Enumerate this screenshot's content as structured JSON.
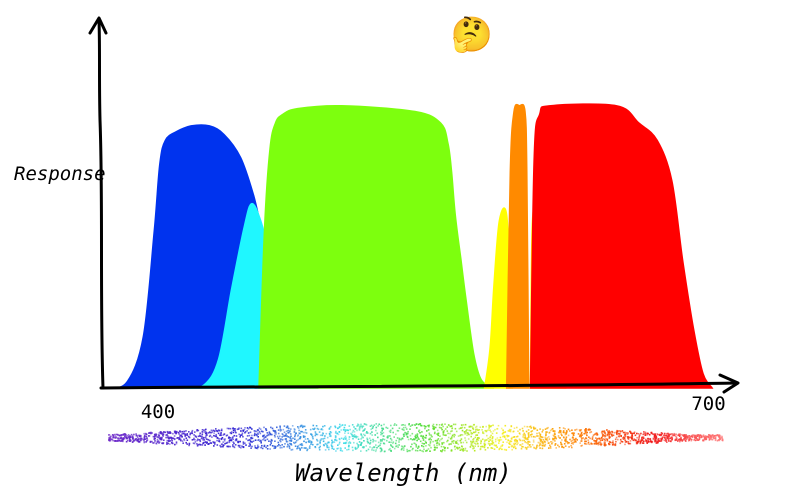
{
  "chart_data": {
    "type": "area",
    "title": "",
    "xlabel": "Wavelength (nm)",
    "ylabel": "Response",
    "xlim": [
      370,
      715
    ],
    "ylim": [
      0,
      1
    ],
    "x_ticks": [
      {
        "value": 400,
        "label": "400"
      },
      {
        "value": 700,
        "label": "700"
      }
    ],
    "annotation": "🤔",
    "series": [
      {
        "color": "#0033ee",
        "points": [
          [
            372,
            0
          ],
          [
            383,
            0.02
          ],
          [
            392,
            0.18
          ],
          [
            398,
            0.55
          ],
          [
            401,
            0.78
          ],
          [
            404,
            0.86
          ],
          [
            410,
            0.89
          ],
          [
            418,
            0.91
          ],
          [
            428,
            0.91
          ],
          [
            436,
            0.88
          ],
          [
            445,
            0.8
          ],
          [
            452,
            0.67
          ],
          [
            456,
            0.56
          ],
          [
            460,
            0.44
          ],
          [
            463,
            0.38
          ],
          [
            466,
            0.32
          ],
          [
            470,
            0.22
          ],
          [
            476,
            0.05
          ],
          [
            480,
            0.02
          ],
          [
            486,
            0
          ]
        ]
      },
      {
        "color": "#1ff7ff",
        "points": [
          [
            414,
            0
          ],
          [
            425,
            0.01
          ],
          [
            433,
            0.1
          ],
          [
            440,
            0.34
          ],
          [
            447,
            0.56
          ],
          [
            451,
            0.64
          ],
          [
            456,
            0.58
          ],
          [
            462,
            0.43
          ],
          [
            468,
            0.28
          ],
          [
            475,
            0.06
          ],
          [
            482,
            0
          ]
        ]
      },
      {
        "color": "#7dff0e",
        "points": [
          [
            455,
            0
          ],
          [
            458,
            0.55
          ],
          [
            461,
            0.83
          ],
          [
            464,
            0.92
          ],
          [
            468,
            0.95
          ],
          [
            476,
            0.97
          ],
          [
            500,
            0.98
          ],
          [
            540,
            0.96
          ],
          [
            554,
            0.92
          ],
          [
            558,
            0.85
          ],
          [
            560,
            0.75
          ],
          [
            562,
            0.6
          ],
          [
            565,
            0.45
          ],
          [
            568,
            0.3
          ],
          [
            572,
            0.12
          ],
          [
            576,
            0.03
          ],
          [
            582,
            0
          ]
        ]
      },
      {
        "color": "#ffff00",
        "points": [
          [
            578,
            0
          ],
          [
            581,
            0.14
          ],
          [
            583,
            0.35
          ],
          [
            586,
            0.58
          ],
          [
            590,
            0.6
          ],
          [
            592,
            0.3
          ],
          [
            593,
            0
          ]
        ]
      },
      {
        "color": "#ff8a00",
        "points": [
          [
            590,
            0
          ],
          [
            592,
            0.75
          ],
          [
            594,
            0.96
          ],
          [
            597,
            0.98
          ],
          [
            600,
            0.96
          ],
          [
            601,
            0.75
          ],
          [
            602,
            0
          ]
        ]
      },
      {
        "color": "#ffff00",
        "points": [
          [
            603,
            0
          ],
          [
            604,
            0.57
          ],
          [
            607,
            0.57
          ],
          [
            612,
            0.3
          ],
          [
            617,
            0.1
          ],
          [
            622,
            0
          ]
        ]
      },
      {
        "color": "#ff0000",
        "points": [
          [
            603,
            0
          ],
          [
            605,
            0.8
          ],
          [
            608,
            0.95
          ],
          [
            614,
            0.98
          ],
          [
            650,
            0.98
          ],
          [
            662,
            0.92
          ],
          [
            672,
            0.86
          ],
          [
            680,
            0.72
          ],
          [
            686,
            0.44
          ],
          [
            692,
            0.2
          ],
          [
            697,
            0.05
          ],
          [
            702,
            0
          ]
        ]
      }
    ]
  }
}
